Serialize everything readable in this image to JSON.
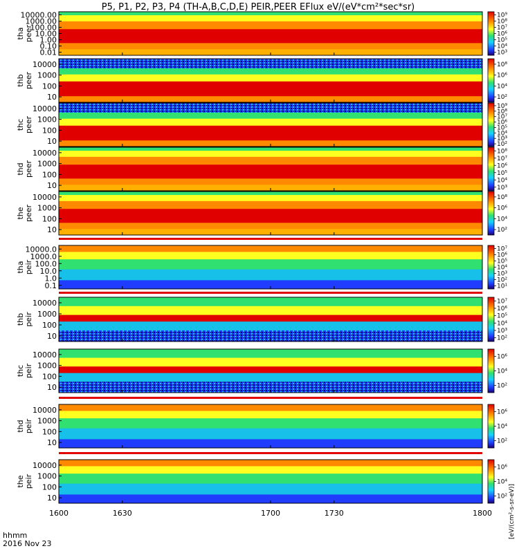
{
  "chart_data": {
    "type": "heatmap",
    "title": "P5, P1, P2, P3, P4 (TH-A,B,C,D,E) PEIR,PEER EFlux eV/(eV*cm²*sec*sr)",
    "x": {
      "ticks": [
        1600,
        1630,
        1700,
        1730,
        1800
      ],
      "tick_labels": [
        "1600",
        "1630",
        "1700",
        "1730",
        "1800"
      ],
      "label_lines": [
        "hhmm",
        "2016 Nov 23"
      ]
    },
    "colorbar_label": "[eV/(cm²-s-sr-eV)]",
    "panels": [
      {
        "probe": "tha",
        "species": "peer",
        "ylabel": [
          "tha",
          "peer"
        ],
        "ytick_labels": [
          "10000.00",
          "1000.00",
          "100.00",
          "10.00",
          "1.00",
          "0.10",
          "0.01"
        ],
        "cbar_ticks": [
          "10⁹",
          "10⁸",
          "10⁷",
          "10⁶",
          "10⁵",
          "10⁴",
          "10³"
        ]
      },
      {
        "probe": "thb",
        "species": "peer",
        "ylabel": [
          "thb",
          "peer"
        ],
        "ytick_labels": [
          "10000",
          "1000",
          "100",
          "10"
        ],
        "cbar_ticks": [
          "10⁸",
          "10⁶",
          "10⁴",
          "10²"
        ]
      },
      {
        "probe": "thc",
        "species": "peer",
        "ylabel": [
          "thc",
          "peer"
        ],
        "ytick_labels": [
          "10000",
          "1000",
          "100",
          "10"
        ],
        "cbar_ticks": [
          "10⁹",
          "10⁸",
          "10⁷",
          "10⁶",
          "10⁵",
          "10⁴",
          "10³",
          "10²"
        ]
      },
      {
        "probe": "thd",
        "species": "peer",
        "ylabel": [
          "thd",
          "peer"
        ],
        "ytick_labels": [
          "10000",
          "1000",
          "100",
          "10"
        ],
        "cbar_ticks": [
          "10⁸",
          "10⁷",
          "10⁶",
          "10⁵",
          "10⁴",
          "10³"
        ]
      },
      {
        "probe": "the",
        "species": "peer",
        "ylabel": [
          "the",
          "peer"
        ],
        "ytick_labels": [
          "10000",
          "1000",
          "100",
          "10"
        ],
        "cbar_ticks": [
          "10⁸",
          "10⁶",
          "10⁴",
          "10²"
        ]
      },
      {
        "probe": "tha",
        "species": "peir",
        "ylabel": [
          "tha",
          "peir"
        ],
        "ytick_labels": [
          "10000.0",
          "1000.0",
          "100.0",
          "10.0",
          "1.0",
          "0.1"
        ],
        "cbar_ticks": [
          "10⁷",
          "10⁶",
          "10⁵",
          "10⁴",
          "10³",
          "10²",
          "10¹"
        ]
      },
      {
        "probe": "thb",
        "species": "peir",
        "ylabel": [
          "thb",
          "peir"
        ],
        "ytick_labels": [
          "10000",
          "1000",
          "100",
          "10"
        ],
        "cbar_ticks": [
          "10⁷",
          "10⁶",
          "10⁵",
          "10⁴",
          "10³",
          "10²"
        ]
      },
      {
        "probe": "thc",
        "species": "peir",
        "ylabel": [
          "thc",
          "peir"
        ],
        "ytick_labels": [
          "10000",
          "1000",
          "100",
          "10"
        ],
        "cbar_ticks": [
          "10⁶",
          "10⁴",
          "10²"
        ]
      },
      {
        "probe": "thd",
        "species": "peir",
        "ylabel": [
          "thd",
          "peir"
        ],
        "ytick_labels": [
          "10000",
          "1000",
          "100",
          "10"
        ],
        "cbar_ticks": [
          "10⁶",
          "10⁴",
          "10²"
        ]
      },
      {
        "probe": "the",
        "species": "peir",
        "ylabel": [
          "the",
          "peir"
        ],
        "ytick_labels": [
          "10000",
          "1000",
          "100",
          "10"
        ],
        "cbar_ticks": [
          "10⁶",
          "10⁴",
          "10²"
        ]
      }
    ]
  }
}
